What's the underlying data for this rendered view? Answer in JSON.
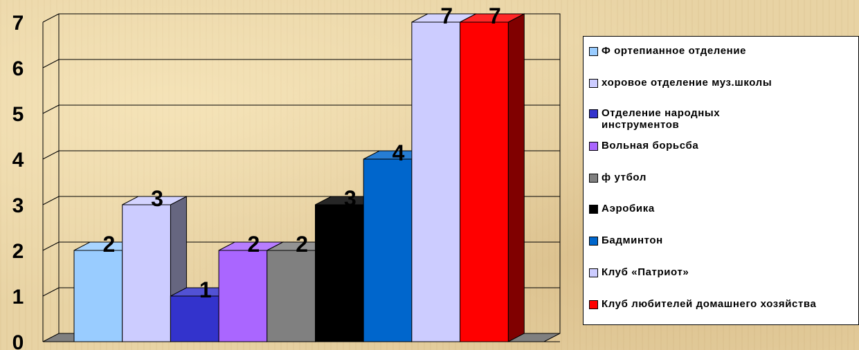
{
  "chart_data": {
    "type": "bar",
    "title": "",
    "xlabel": "",
    "ylabel": "",
    "ylim": [
      0,
      7
    ],
    "yticks": [
      "0",
      "1",
      "2",
      "3",
      "4",
      "5",
      "6",
      "7"
    ],
    "grid": true,
    "legend_position": "right",
    "series": [
      {
        "name": "Ф ортепианное отделение",
        "value": 2,
        "color": "#99ccff"
      },
      {
        "name": "хоровое отделение муз.школы",
        "value": 3,
        "color": "#ccccff"
      },
      {
        "name": "Отделение народных инструментов",
        "value": 1,
        "color": "#3333cc"
      },
      {
        "name": "Вольная борьсба",
        "value": 2,
        "color": "#aa66ff"
      },
      {
        "name": "ф утбол",
        "value": 2,
        "color": "#808080"
      },
      {
        "name": "Аэробика",
        "value": 3,
        "color": "#000000"
      },
      {
        "name": "Бадминтон",
        "value": 4,
        "color": "#0066cc"
      },
      {
        "name": "Клуб «Патриот»",
        "value": 7,
        "color": "#ccccff"
      },
      {
        "name": "Клуб любителей домашнего хозяйства",
        "value": 7,
        "color": "#ff0000"
      }
    ]
  }
}
